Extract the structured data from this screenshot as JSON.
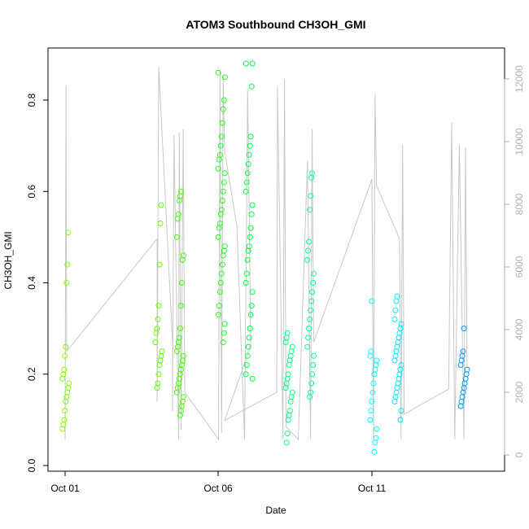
{
  "chart_data": {
    "type": "scatter",
    "title": "ATOM3 Southbound CH3OH_GMI",
    "xlabel": "Date",
    "ylabel": "CH3OH_GMI",
    "x_ticks": [
      {
        "label": "Oct 01",
        "day": 1
      },
      {
        "label": "Oct 06",
        "day": 6
      },
      {
        "label": "Oct 11",
        "day": 11
      }
    ],
    "ylim": [
      0,
      0.9
    ],
    "y_ticks": [
      "0.0",
      "0.2",
      "0.4",
      "0.6",
      "0.8"
    ],
    "secondary_axis": {
      "ylim": [
        0,
        12500
      ],
      "ticks": [
        "0",
        "2000",
        "4000",
        "6000",
        "8000",
        "10000",
        "12000"
      ],
      "color": "#b0b0b0",
      "series_color": "#c8c8c8"
    },
    "clusters": [
      {
        "day": 1.02,
        "color": "#80ff00",
        "values": [
          0.08,
          0.09,
          0.1,
          0.12,
          0.14,
          0.15,
          0.16,
          0.17,
          0.18,
          0.19,
          0.2,
          0.21,
          0.24,
          0.26,
          0.4,
          0.44,
          0.51
        ]
      },
      {
        "day": 4.05,
        "color": "#60ff00",
        "values": [
          0.17,
          0.18,
          0.2,
          0.22,
          0.23,
          0.24,
          0.25,
          0.27,
          0.29,
          0.3,
          0.32,
          0.35,
          0.44,
          0.53,
          0.57
        ]
      },
      {
        "day": 4.75,
        "color": "#40ff00",
        "values": [
          0.11,
          0.12,
          0.13,
          0.14,
          0.15,
          0.16,
          0.17,
          0.18,
          0.19,
          0.2,
          0.21,
          0.22,
          0.23,
          0.24,
          0.25,
          0.26,
          0.27,
          0.28,
          0.3,
          0.35,
          0.4,
          0.45,
          0.46,
          0.5,
          0.54,
          0.55,
          0.58,
          0.59,
          0.6
        ]
      },
      {
        "day": 6.1,
        "color": "#20ff20",
        "values": [
          0.27,
          0.29,
          0.31,
          0.33,
          0.35,
          0.38,
          0.4,
          0.42,
          0.44,
          0.46,
          0.47,
          0.48,
          0.5,
          0.52,
          0.53,
          0.55,
          0.56,
          0.58,
          0.6,
          0.62,
          0.64,
          0.65,
          0.67,
          0.68,
          0.7,
          0.72,
          0.75,
          0.78,
          0.8,
          0.85,
          0.86
        ]
      },
      {
        "day": 7.0,
        "color": "#00ff40",
        "values": [
          0.19,
          0.2,
          0.22,
          0.24,
          0.26,
          0.28,
          0.3,
          0.33,
          0.35,
          0.38,
          0.4,
          0.42,
          0.45,
          0.47,
          0.48,
          0.5,
          0.52,
          0.55,
          0.57,
          0.6,
          0.62,
          0.64,
          0.66,
          0.68,
          0.7,
          0.72,
          0.83,
          0.88,
          0.88
        ]
      },
      {
        "day": 8.3,
        "color": "#00ff80",
        "values": [
          0.05,
          0.07,
          0.1,
          0.11,
          0.12,
          0.14,
          0.15,
          0.16,
          0.17,
          0.18,
          0.19,
          0.2,
          0.22,
          0.23,
          0.24,
          0.25,
          0.26,
          0.27,
          0.28,
          0.29
        ]
      },
      {
        "day": 9.0,
        "color": "#00ffa0",
        "values": [
          0.15,
          0.16,
          0.18,
          0.2,
          0.22,
          0.24,
          0.26,
          0.28,
          0.3,
          0.32,
          0.34,
          0.36,
          0.38,
          0.4,
          0.42,
          0.45,
          0.47,
          0.49,
          0.56,
          0.59,
          0.63,
          0.64
        ]
      },
      {
        "day": 11.05,
        "color": "#00ffff",
        "values": [
          0.03,
          0.05,
          0.06,
          0.08,
          0.1,
          0.12,
          0.14,
          0.16,
          0.18,
          0.2,
          0.21,
          0.22,
          0.23,
          0.24,
          0.25,
          0.36
        ]
      },
      {
        "day": 11.85,
        "color": "#00e8ff",
        "values": [
          0.1,
          0.12,
          0.14,
          0.15,
          0.16,
          0.17,
          0.18,
          0.19,
          0.2,
          0.21,
          0.22,
          0.23,
          0.24,
          0.25,
          0.26,
          0.27,
          0.28,
          0.29,
          0.3,
          0.31,
          0.32,
          0.34,
          0.36,
          0.37
        ]
      },
      {
        "day": 14.0,
        "color": "#0099ff",
        "values": [
          0.13,
          0.14,
          0.15,
          0.16,
          0.17,
          0.18,
          0.19,
          0.2,
          0.21,
          0.22,
          0.23,
          0.24,
          0.25,
          0.3
        ]
      }
    ],
    "altitude_trace": [
      {
        "day": 1.0,
        "alt": 500
      },
      {
        "day": 1.03,
        "alt": 11800
      },
      {
        "day": 1.05,
        "alt": 3300
      },
      {
        "day": 4.0,
        "alt": 6900
      },
      {
        "day": 4.0,
        "alt": 1700
      },
      {
        "day": 4.05,
        "alt": 12400
      },
      {
        "day": 4.5,
        "alt": 3600
      },
      {
        "day": 4.5,
        "alt": 1400
      },
      {
        "day": 4.55,
        "alt": 10200
      },
      {
        "day": 4.7,
        "alt": 500
      },
      {
        "day": 4.72,
        "alt": 10300
      },
      {
        "day": 4.78,
        "alt": 800
      },
      {
        "day": 4.85,
        "alt": 10400
      },
      {
        "day": 4.9,
        "alt": 2000
      },
      {
        "day": 6.0,
        "alt": 500
      },
      {
        "day": 6.05,
        "alt": 12300
      },
      {
        "day": 6.1,
        "alt": 700
      },
      {
        "day": 6.15,
        "alt": 12100
      },
      {
        "day": 6.2,
        "alt": 9700
      },
      {
        "day": 6.6,
        "alt": 7300
      },
      {
        "day": 6.85,
        "alt": 500
      },
      {
        "day": 6.95,
        "alt": 11700
      },
      {
        "day": 7.05,
        "alt": 3500
      },
      {
        "day": 6.2,
        "alt": 1100
      },
      {
        "day": 7.9,
        "alt": 2000
      },
      {
        "day": 7.92,
        "alt": 11800
      },
      {
        "day": 8.1,
        "alt": 500
      },
      {
        "day": 8.15,
        "alt": 12000
      },
      {
        "day": 8.2,
        "alt": 900
      },
      {
        "day": 8.6,
        "alt": 500
      },
      {
        "day": 8.9,
        "alt": 9400
      },
      {
        "day": 9.0,
        "alt": 500
      },
      {
        "day": 9.05,
        "alt": 10400
      },
      {
        "day": 9.1,
        "alt": 3600
      },
      {
        "day": 11.0,
        "alt": 8800
      },
      {
        "day": 11.05,
        "alt": 500
      },
      {
        "day": 11.1,
        "alt": 11500
      },
      {
        "day": 11.15,
        "alt": 8600
      },
      {
        "day": 11.9,
        "alt": 6900
      },
      {
        "day": 11.95,
        "alt": 500
      },
      {
        "day": 12.0,
        "alt": 9900
      },
      {
        "day": 12.05,
        "alt": 1300
      },
      {
        "day": 13.5,
        "alt": 2100
      },
      {
        "day": 13.6,
        "alt": 10600
      },
      {
        "day": 13.7,
        "alt": 500
      },
      {
        "day": 13.85,
        "alt": 9900
      },
      {
        "day": 14.0,
        "alt": 500
      },
      {
        "day": 14.05,
        "alt": 9800
      },
      {
        "day": 14.1,
        "alt": 2800
      }
    ]
  }
}
